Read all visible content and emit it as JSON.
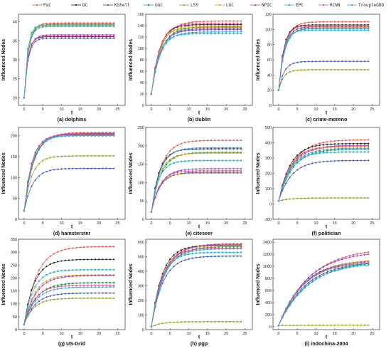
{
  "legend": [
    "PaC",
    "DC",
    "KShell",
    "GGC",
    "LSS",
    "LGC",
    "NPIC",
    "EPC",
    "RCNN",
    "TroupleGDD"
  ],
  "series_colors": [
    "#e8544e",
    "#222222",
    "#3f4fbf",
    "#1aa04a",
    "#9a9a1a",
    "#e0a020",
    "#a040c8",
    "#28b8c8",
    "#e04890",
    "#3aa0e0"
  ],
  "xticks": [
    0,
    5,
    10,
    15,
    20,
    25
  ],
  "chart_data": [
    {
      "type": "line",
      "caption": "(a) dolphins",
      "xlabel": "t",
      "ylabel": "Influenced Nodes",
      "xlim": [
        -1.5,
        27
      ],
      "ylim": [
        18,
        42
      ],
      "yticks": [
        20,
        25,
        30,
        35,
        40
      ],
      "y0": 20,
      "rate": 1.0,
      "series": [
        {
          "name": "PaC",
          "final": 39.7
        },
        {
          "name": "DC",
          "final": 36.1
        },
        {
          "name": "KShell",
          "final": 35.7
        },
        {
          "name": "GGC",
          "final": 39.4
        },
        {
          "name": "LSS",
          "final": 39.0
        },
        {
          "name": "LGC",
          "final": 39.3
        },
        {
          "name": "NPIC",
          "final": 36.6
        },
        {
          "name": "EPC",
          "final": 39.2
        },
        {
          "name": "RCNN",
          "final": 36.3
        },
        {
          "name": "TroupleGDD",
          "final": 38.8
        }
      ]
    },
    {
      "type": "line",
      "caption": "(b) dublin",
      "xlabel": "t",
      "ylabel": "Influenced Nodes",
      "xlim": [
        -1.5,
        27
      ],
      "ylim": [
        0,
        160
      ],
      "yticks": [
        0,
        20,
        40,
        60,
        80,
        100,
        120,
        140,
        160
      ],
      "y0": 20,
      "rate": 0.45,
      "series": [
        {
          "name": "PaC",
          "final": 148
        },
        {
          "name": "DC",
          "final": 142
        },
        {
          "name": "KShell",
          "final": 133
        },
        {
          "name": "GGC",
          "final": 138
        },
        {
          "name": "LSS",
          "final": 137
        },
        {
          "name": "LGC",
          "final": 140
        },
        {
          "name": "NPIC",
          "final": 135
        },
        {
          "name": "EPC",
          "final": 126
        },
        {
          "name": "RCNN",
          "final": 144
        },
        {
          "name": "TroupleGDD",
          "final": 129
        }
      ]
    },
    {
      "type": "line",
      "caption": "(c) crime-moreno",
      "xlabel": "t",
      "ylabel": "Influenced Nodes",
      "xlim": [
        -1.5,
        27
      ],
      "ylim": [
        0,
        120
      ],
      "yticks": [
        0,
        20,
        40,
        60,
        80,
        100,
        120
      ],
      "y0": 20,
      "rate": 0.7,
      "series": [
        {
          "name": "PaC",
          "final": 110
        },
        {
          "name": "DC",
          "final": 106
        },
        {
          "name": "KShell",
          "final": 58
        },
        {
          "name": "GGC",
          "final": 102
        },
        {
          "name": "LSS",
          "final": 47
        },
        {
          "name": "LGC",
          "final": 103
        },
        {
          "name": "NPIC",
          "final": 104
        },
        {
          "name": "EPC",
          "final": 99
        },
        {
          "name": "RCNN",
          "final": 105
        },
        {
          "name": "TroupleGDD",
          "final": 101
        }
      ]
    },
    {
      "type": "line",
      "caption": "(d) hamsterster",
      "xlabel": "t",
      "ylabel": "Influenced Nodes",
      "xlim": [
        -1.5,
        27
      ],
      "ylim": [
        0,
        220
      ],
      "yticks": [
        0,
        50,
        100,
        150,
        200
      ],
      "y0": 20,
      "rate": 0.45,
      "series": [
        {
          "name": "PaC",
          "final": 208
        },
        {
          "name": "DC",
          "final": 203
        },
        {
          "name": "KShell",
          "final": 122
        },
        {
          "name": "GGC",
          "final": 205
        },
        {
          "name": "LSS",
          "final": 152
        },
        {
          "name": "LGC",
          "final": 201
        },
        {
          "name": "NPIC",
          "final": 206
        },
        {
          "name": "EPC",
          "final": 200
        },
        {
          "name": "RCNN",
          "final": 204
        },
        {
          "name": "TroupleGDD",
          "final": 202
        }
      ]
    },
    {
      "type": "line",
      "caption": "(e) citeseer",
      "xlabel": "t",
      "ylabel": "Influenced Nodes",
      "xlim": [
        -1.5,
        27
      ],
      "ylim": [
        0,
        250
      ],
      "yticks": [
        0,
        50,
        100,
        150,
        200,
        250
      ],
      "y0": 20,
      "rate": 0.45,
      "series": [
        {
          "name": "PaC",
          "final": 215
        },
        {
          "name": "DC",
          "final": 192
        },
        {
          "name": "KShell",
          "final": 128
        },
        {
          "name": "GGC",
          "final": 182
        },
        {
          "name": "LSS",
          "final": 126
        },
        {
          "name": "LGC",
          "final": 180
        },
        {
          "name": "NPIC",
          "final": 138
        },
        {
          "name": "EPC",
          "final": 160
        },
        {
          "name": "RCNN",
          "final": 132
        },
        {
          "name": "TroupleGDD",
          "final": 195
        }
      ]
    },
    {
      "type": "line",
      "caption": "(f) politician",
      "xlabel": "t",
      "ylabel": "Influenced Nodes",
      "xlim": [
        -1.5,
        27
      ],
      "ylim": [
        -100,
        500
      ],
      "yticks": [
        -100,
        0,
        100,
        200,
        300,
        400,
        500
      ],
      "y0": 20,
      "rate": 0.3,
      "series": [
        {
          "name": "PaC",
          "final": 420
        },
        {
          "name": "DC",
          "final": 395
        },
        {
          "name": "KShell",
          "final": 285
        },
        {
          "name": "GGC",
          "final": 360
        },
        {
          "name": "LSS",
          "final": 40
        },
        {
          "name": "LGC",
          "final": 375
        },
        {
          "name": "NPIC",
          "final": 385
        },
        {
          "name": "EPC",
          "final": 340
        },
        {
          "name": "RCNN",
          "final": 380
        },
        {
          "name": "TroupleGDD",
          "final": 365
        }
      ]
    },
    {
      "type": "line",
      "caption": "(g) US-Grid",
      "xlabel": "t",
      "ylabel": "Influenced Nodes",
      "xlim": [
        -1.5,
        27
      ],
      "ylim": [
        0,
        350
      ],
      "yticks": [
        0,
        50,
        100,
        150,
        200,
        250,
        300,
        350
      ],
      "y0": 20,
      "rate": 0.35,
      "series": [
        {
          "name": "PaC",
          "final": 322
        },
        {
          "name": "DC",
          "final": 272
        },
        {
          "name": "KShell",
          "final": 142
        },
        {
          "name": "GGC",
          "final": 182
        },
        {
          "name": "LSS",
          "final": 122
        },
        {
          "name": "LGC",
          "final": 212
        },
        {
          "name": "NPIC",
          "final": 210
        },
        {
          "name": "EPC",
          "final": 232
        },
        {
          "name": "RCNN",
          "final": 172
        },
        {
          "name": "TroupleGDD",
          "final": 165
        }
      ]
    },
    {
      "type": "line",
      "caption": "(h) pgp",
      "xlabel": "t",
      "ylabel": "Influenced Nodes",
      "xlim": [
        -1.5,
        27
      ],
      "ylim": [
        0,
        620
      ],
      "yticks": [
        0,
        100,
        200,
        300,
        400,
        500,
        600
      ],
      "y0": 20,
      "rate": 0.33,
      "series": [
        {
          "name": "PaC",
          "final": 590
        },
        {
          "name": "DC",
          "final": 580
        },
        {
          "name": "KShell",
          "final": 505
        },
        {
          "name": "GGC",
          "final": 570
        },
        {
          "name": "LSS",
          "final": 55
        },
        {
          "name": "LGC",
          "final": 575
        },
        {
          "name": "NPIC",
          "final": 585
        },
        {
          "name": "EPC",
          "final": 530
        },
        {
          "name": "RCNN",
          "final": 560
        },
        {
          "name": "TroupleGDD",
          "final": 555
        }
      ]
    },
    {
      "type": "line",
      "caption": "(i) indochina-2004",
      "xlabel": "t",
      "ylabel": "Influenced Nodes",
      "xlim": [
        -1.5,
        27
      ],
      "ylim": [
        -50,
        1450
      ],
      "yticks": [
        0,
        200,
        400,
        600,
        800,
        1000,
        1200,
        1400
      ],
      "y0": 20,
      "rate": 0.14,
      "series": [
        {
          "name": "PaC",
          "final": 1310
        },
        {
          "name": "DC",
          "final": 1120
        },
        {
          "name": "KShell",
          "final": 1090
        },
        {
          "name": "GGC",
          "final": 1100
        },
        {
          "name": "LSS",
          "final": 25
        },
        {
          "name": "LGC",
          "final": 1130
        },
        {
          "name": "NPIC",
          "final": 1260
        },
        {
          "name": "EPC",
          "final": 1080
        },
        {
          "name": "RCNN",
          "final": 1110
        },
        {
          "name": "TroupleGDD",
          "final": 1070
        }
      ]
    }
  ]
}
